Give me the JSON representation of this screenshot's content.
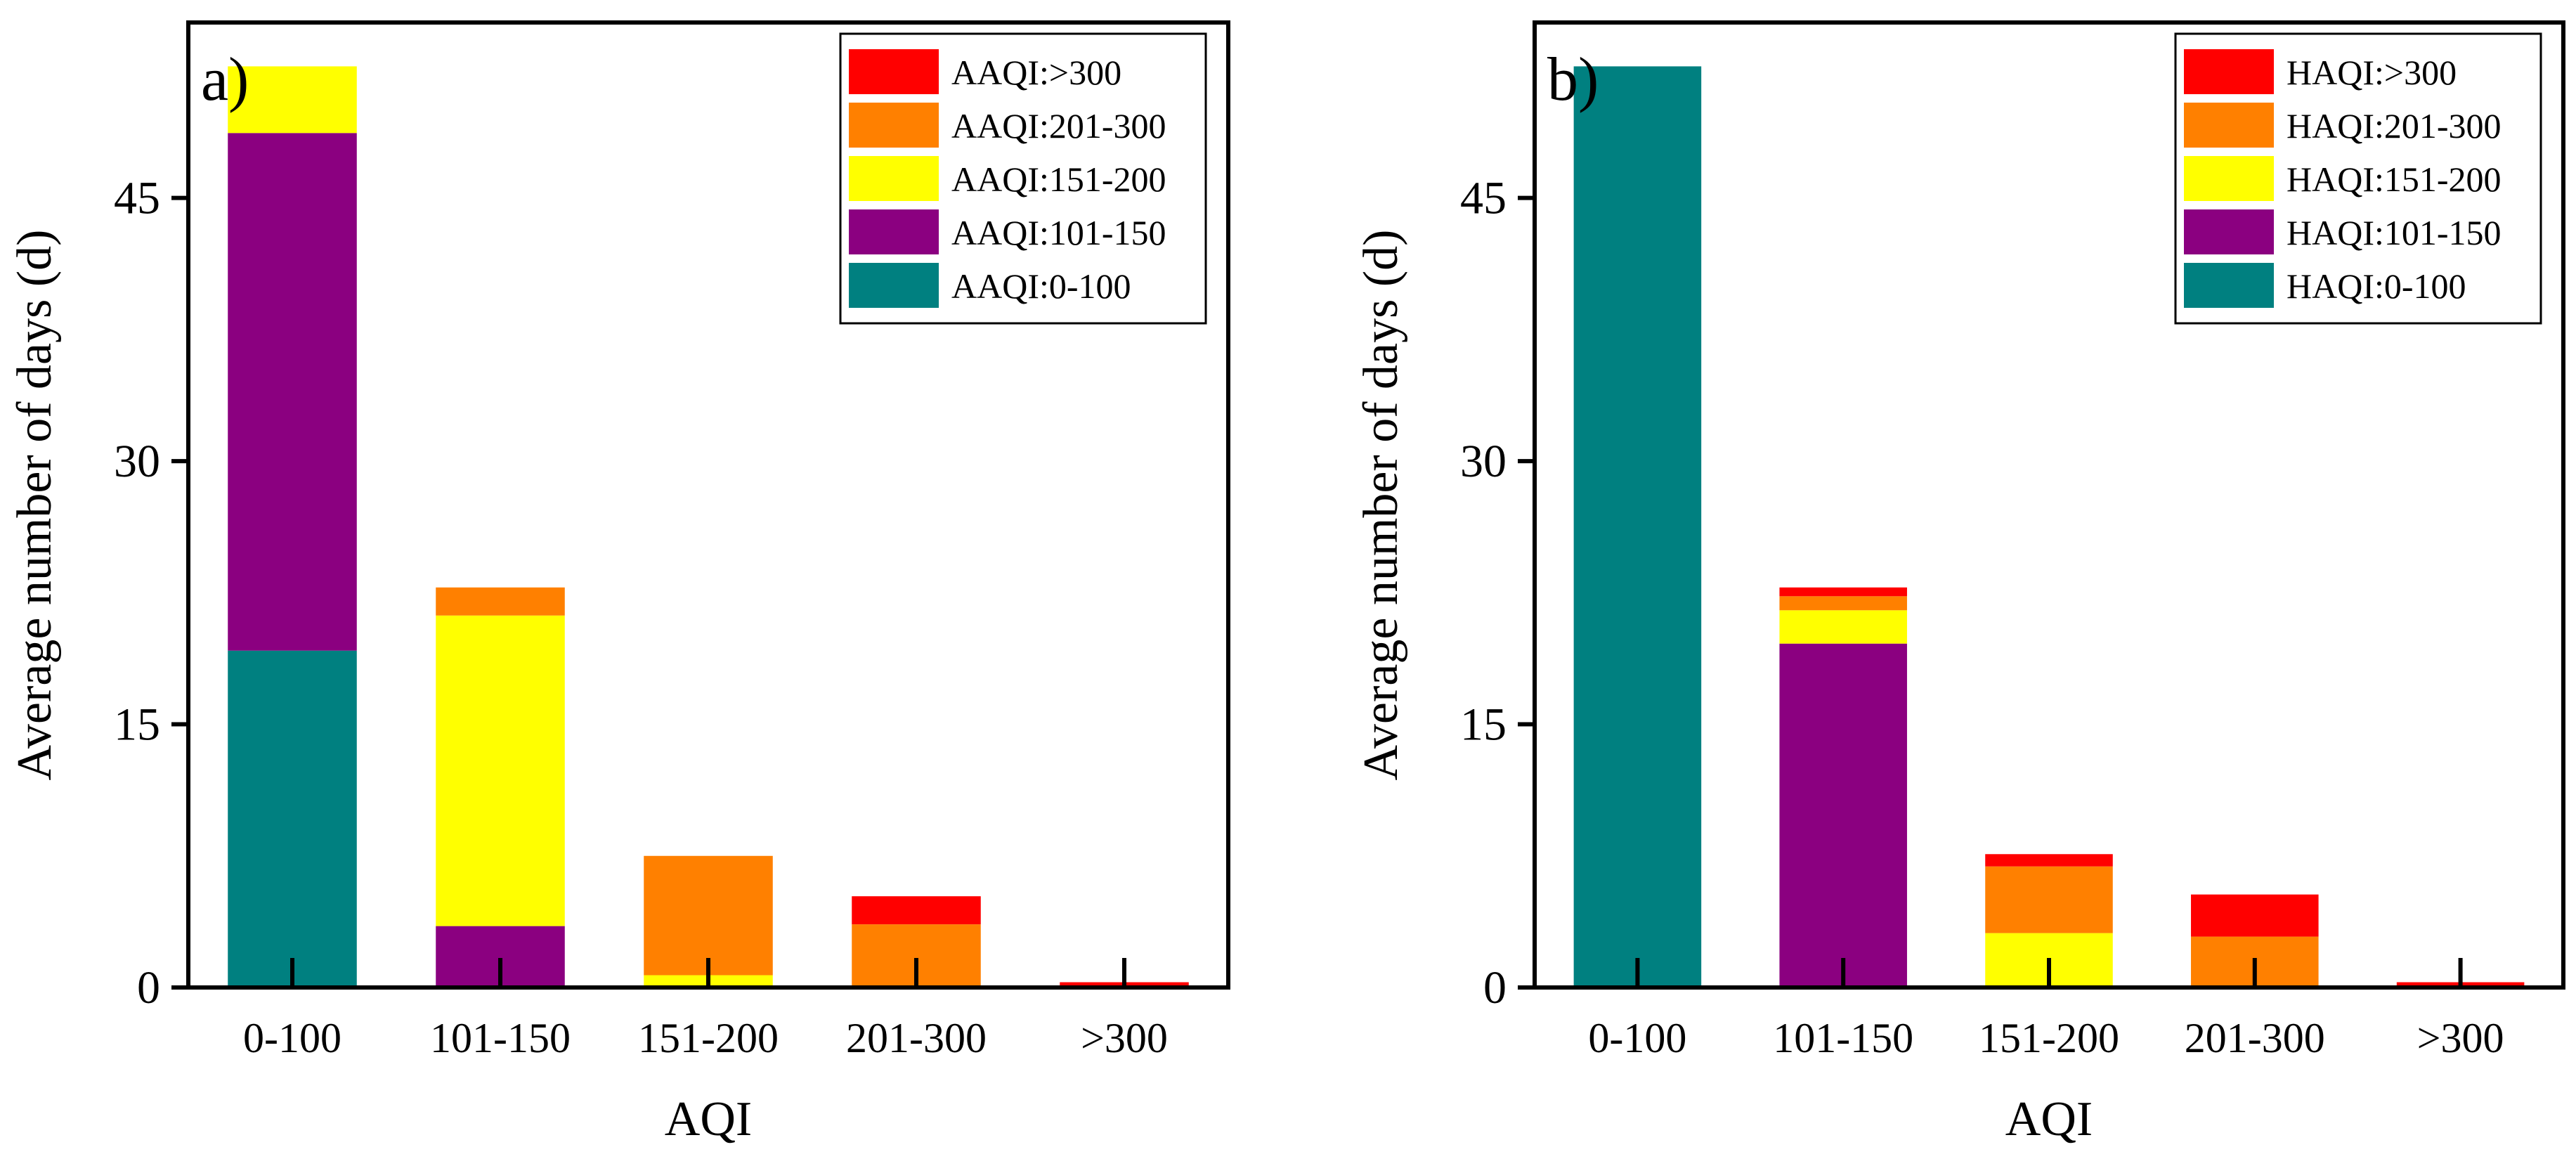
{
  "chart_data": [
    {
      "type": "bar",
      "stacked": true,
      "panel_label": "a)",
      "xlabel": "AQI",
      "ylabel": "Average number of days (d)",
      "categories": [
        "0-100",
        "101-150",
        "151-200",
        "201-300",
        ">300"
      ],
      "yticks": [
        0,
        15,
        30,
        45
      ],
      "ylim": [
        0,
        55
      ],
      "legend_position": "top-right",
      "series": [
        {
          "name": "AAQI:0-100",
          "color": "#008080",
          "values": [
            19.2,
            0,
            0,
            0,
            0
          ]
        },
        {
          "name": "AAQI:101-150",
          "color": "#8B0080",
          "values": [
            29.5,
            3.5,
            0,
            0,
            0
          ]
        },
        {
          "name": "AAQI:151-200",
          "color": "#FFFF00",
          "values": [
            3.8,
            17.7,
            0.7,
            0,
            0
          ]
        },
        {
          "name": "AAQI:201-300",
          "color": "#FF8000",
          "values": [
            0,
            1.6,
            6.8,
            3.6,
            0
          ]
        },
        {
          "name": "AAQI:>300",
          "color": "#FF0000",
          "values": [
            0,
            0,
            0,
            1.6,
            0.3
          ]
        }
      ]
    },
    {
      "type": "bar",
      "stacked": true,
      "panel_label": "b)",
      "xlabel": "AQI",
      "ylabel": "Average number of days (d)",
      "categories": [
        "0-100",
        "101-150",
        "151-200",
        "201-300",
        ">300"
      ],
      "yticks": [
        0,
        15,
        30,
        45
      ],
      "ylim": [
        0,
        55
      ],
      "legend_position": "top-right",
      "series": [
        {
          "name": "HAQI:0-100",
          "color": "#008080",
          "values": [
            52.5,
            0,
            0,
            0,
            0
          ]
        },
        {
          "name": "HAQI:101-150",
          "color": "#8B0080",
          "values": [
            0,
            19.6,
            0,
            0,
            0
          ]
        },
        {
          "name": "HAQI:151-200",
          "color": "#FFFF00",
          "values": [
            0,
            1.9,
            3.1,
            0,
            0
          ]
        },
        {
          "name": "HAQI:201-300",
          "color": "#FF8000",
          "values": [
            0,
            0.8,
            3.8,
            2.9,
            0
          ]
        },
        {
          "name": "HAQI:>300",
          "color": "#FF0000",
          "values": [
            0,
            0.5,
            0.7,
            2.4,
            0.3
          ]
        }
      ]
    }
  ]
}
